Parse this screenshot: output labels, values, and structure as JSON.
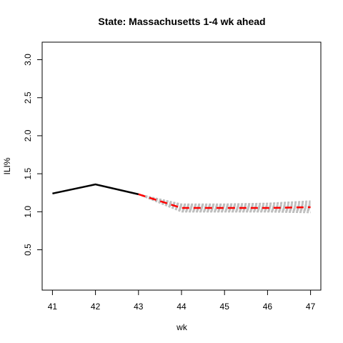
{
  "chart_data": {
    "type": "line",
    "title": "State: Massachusetts 1-4 wk ahead",
    "xlabel": "wk",
    "ylabel": "ILI%",
    "xlim": [
      41,
      47
    ],
    "ylim": [
      0.1,
      3.1
    ],
    "x_ticks": [
      41,
      42,
      43,
      44,
      45,
      46,
      47
    ],
    "y_ticks": [
      0.5,
      1.0,
      1.5,
      2.0,
      2.5,
      3.0
    ],
    "y_tick_labels": [
      "0.5",
      "1.0",
      "1.5",
      "2.0",
      "2.5",
      "3.0"
    ],
    "grid": false,
    "legend": "none",
    "series": [
      {
        "role": "observed",
        "color": "#000000",
        "style": "solid",
        "x": [
          41,
          42,
          43
        ],
        "y": [
          1.24,
          1.36,
          1.23
        ]
      },
      {
        "role": "forecast-mean",
        "color": "#ff0000",
        "style": "dashed",
        "x": [
          43,
          44,
          45,
          46,
          47
        ],
        "y": [
          1.23,
          1.05,
          1.05,
          1.05,
          1.06
        ]
      }
    ],
    "ensemble": {
      "color": "#bebebe",
      "style": "dashed",
      "x": [
        43,
        44,
        45,
        46,
        47
      ],
      "members": [
        [
          1.23,
          1.0,
          1.0,
          1.0,
          0.99
        ],
        [
          1.23,
          1.01,
          1.01,
          1.01,
          1.01
        ],
        [
          1.23,
          1.02,
          1.02,
          1.02,
          1.02
        ],
        [
          1.23,
          1.03,
          1.03,
          1.03,
          1.03
        ],
        [
          1.23,
          1.04,
          1.04,
          1.04,
          1.04
        ],
        [
          1.23,
          1.05,
          1.05,
          1.05,
          1.05
        ],
        [
          1.23,
          1.06,
          1.06,
          1.06,
          1.07
        ],
        [
          1.23,
          1.07,
          1.07,
          1.07,
          1.08
        ],
        [
          1.23,
          1.08,
          1.08,
          1.08,
          1.1
        ],
        [
          1.23,
          1.09,
          1.09,
          1.1,
          1.12
        ],
        [
          1.23,
          1.1,
          1.1,
          1.11,
          1.14
        ]
      ]
    }
  }
}
